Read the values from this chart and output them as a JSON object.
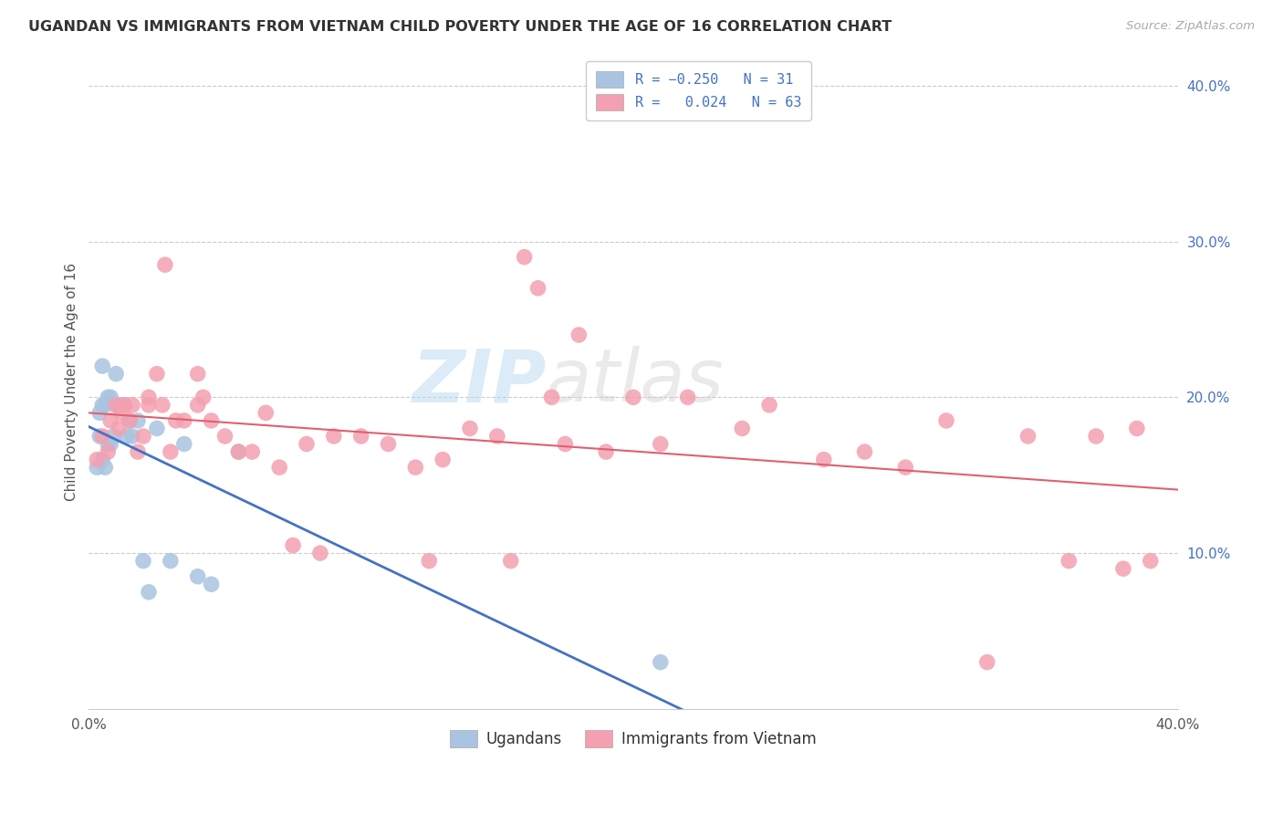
{
  "title": "UGANDAN VS IMMIGRANTS FROM VIETNAM CHILD POVERTY UNDER THE AGE OF 16 CORRELATION CHART",
  "source": "Source: ZipAtlas.com",
  "ylabel": "Child Poverty Under the Age of 16",
  "xlim": [
    0.0,
    0.4
  ],
  "ylim": [
    0.0,
    0.42
  ],
  "color_ugandan": "#a8c4e0",
  "color_vietnam": "#f4a0b0",
  "color_line_ugandan": "#4472c4",
  "color_line_vietnam": "#e06070",
  "watermark_zip": "ZIP",
  "watermark_atlas": "atlas",
  "background_color": "#ffffff",
  "grid_color": "#cccccc",
  "ugandan_x": [
    0.003,
    0.004,
    0.004,
    0.005,
    0.005,
    0.005,
    0.006,
    0.006,
    0.007,
    0.007,
    0.008,
    0.008,
    0.009,
    0.01,
    0.01,
    0.011,
    0.012,
    0.013,
    0.014,
    0.015,
    0.016,
    0.018,
    0.02,
    0.022,
    0.025,
    0.03,
    0.035,
    0.04,
    0.045,
    0.055,
    0.21
  ],
  "ugandan_y": [
    0.155,
    0.175,
    0.19,
    0.16,
    0.195,
    0.22,
    0.155,
    0.195,
    0.17,
    0.2,
    0.17,
    0.2,
    0.175,
    0.195,
    0.215,
    0.195,
    0.195,
    0.195,
    0.175,
    0.185,
    0.175,
    0.185,
    0.095,
    0.075,
    0.18,
    0.095,
    0.17,
    0.085,
    0.08,
    0.165,
    0.03
  ],
  "vietnam_x": [
    0.003,
    0.005,
    0.007,
    0.008,
    0.01,
    0.011,
    0.012,
    0.013,
    0.015,
    0.016,
    0.018,
    0.02,
    0.022,
    0.022,
    0.025,
    0.027,
    0.028,
    0.03,
    0.032,
    0.035,
    0.04,
    0.04,
    0.042,
    0.045,
    0.05,
    0.055,
    0.06,
    0.065,
    0.07,
    0.075,
    0.08,
    0.085,
    0.09,
    0.1,
    0.11,
    0.12,
    0.125,
    0.13,
    0.14,
    0.15,
    0.155,
    0.16,
    0.165,
    0.17,
    0.175,
    0.18,
    0.19,
    0.2,
    0.21,
    0.22,
    0.24,
    0.25,
    0.27,
    0.285,
    0.3,
    0.315,
    0.33,
    0.345,
    0.36,
    0.37,
    0.38,
    0.385,
    0.39
  ],
  "vietnam_y": [
    0.16,
    0.175,
    0.165,
    0.185,
    0.195,
    0.18,
    0.19,
    0.195,
    0.185,
    0.195,
    0.165,
    0.175,
    0.2,
    0.195,
    0.215,
    0.195,
    0.285,
    0.165,
    0.185,
    0.185,
    0.195,
    0.215,
    0.2,
    0.185,
    0.175,
    0.165,
    0.165,
    0.19,
    0.155,
    0.105,
    0.17,
    0.1,
    0.175,
    0.175,
    0.17,
    0.155,
    0.095,
    0.16,
    0.18,
    0.175,
    0.095,
    0.29,
    0.27,
    0.2,
    0.17,
    0.24,
    0.165,
    0.2,
    0.17,
    0.2,
    0.18,
    0.195,
    0.16,
    0.165,
    0.155,
    0.185,
    0.03,
    0.175,
    0.095,
    0.175,
    0.09,
    0.18,
    0.095
  ]
}
